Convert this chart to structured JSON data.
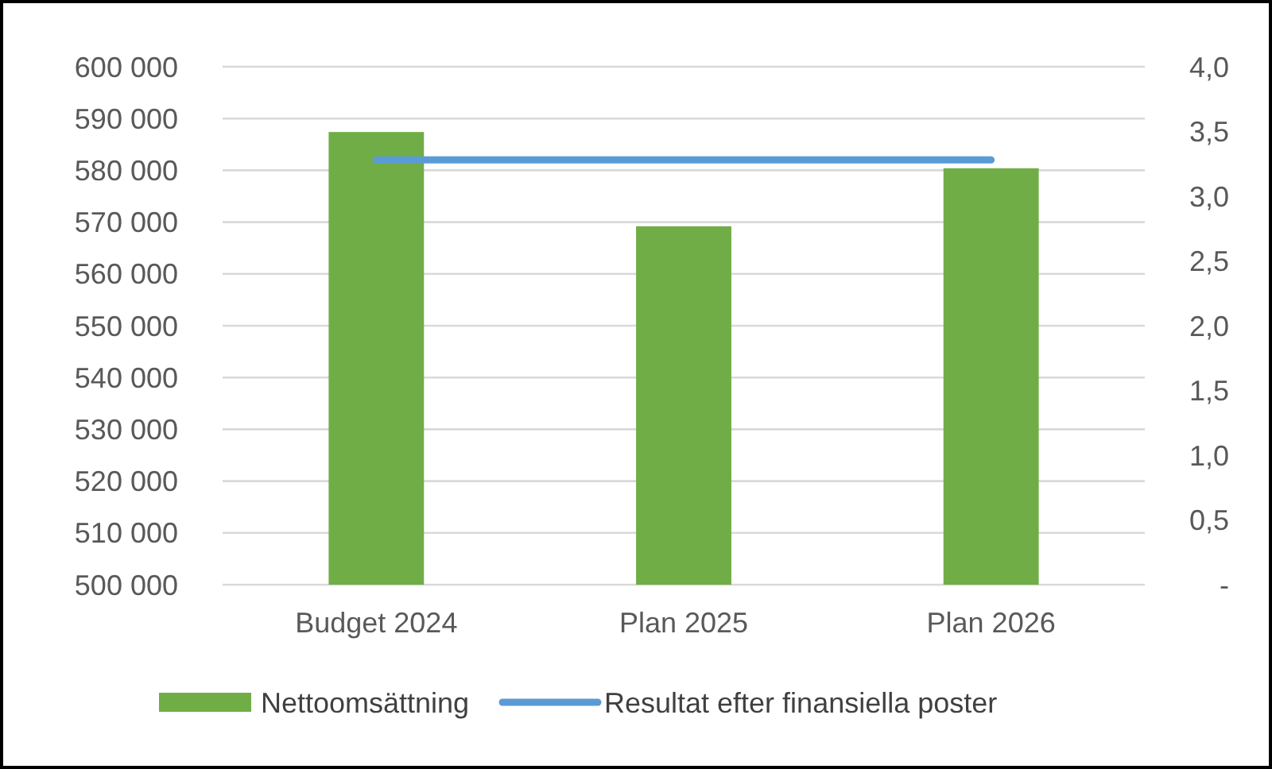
{
  "chart_data": {
    "type": "bar",
    "categories": [
      "Budget 2024",
      "Plan 2025",
      "Plan 2026"
    ],
    "series": [
      {
        "name": "Nettoomsättning",
        "color": "#70ad47",
        "values": [
          587400,
          569200,
          580400
        ]
      },
      {
        "name": "Resultat efter finansiella poster",
        "type": "line",
        "axis": "y2",
        "color": "#5b9bd5",
        "values": [
          3.28,
          3.28,
          3.28
        ]
      }
    ],
    "ylim": [
      500000,
      600000
    ],
    "yticks": [
      {
        "value": 500000,
        "label": "500 000"
      },
      {
        "value": 510000,
        "label": "510 000"
      },
      {
        "value": 520000,
        "label": "520 000"
      },
      {
        "value": 530000,
        "label": "530 000"
      },
      {
        "value": 540000,
        "label": "540 000"
      },
      {
        "value": 550000,
        "label": "550 000"
      },
      {
        "value": 560000,
        "label": "560 000"
      },
      {
        "value": 570000,
        "label": "570 000"
      },
      {
        "value": 580000,
        "label": "580 000"
      },
      {
        "value": 590000,
        "label": "590 000"
      },
      {
        "value": 600000,
        "label": "600 000"
      }
    ],
    "y2lim": [
      0,
      4
    ],
    "y2ticks": [
      {
        "value": 0,
        "label": "-"
      },
      {
        "value": 0.5,
        "label": "0,5"
      },
      {
        "value": 1,
        "label": "1,0"
      },
      {
        "value": 1.5,
        "label": "1,5"
      },
      {
        "value": 2,
        "label": "2,0"
      },
      {
        "value": 2.5,
        "label": "2,5"
      },
      {
        "value": 3,
        "label": "3,0"
      },
      {
        "value": 3.5,
        "label": "3,5"
      },
      {
        "value": 4,
        "label": "4,0"
      }
    ],
    "grid": "y",
    "legend": "bottom",
    "marker": "none",
    "line_style": "solid"
  }
}
